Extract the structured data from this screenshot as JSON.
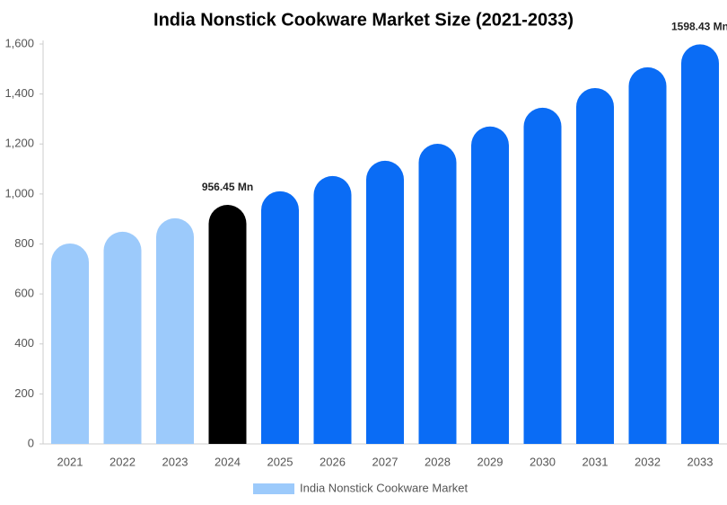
{
  "chart_data": {
    "type": "bar",
    "title": "India Nonstick Cookware Market Size (2021-2033)",
    "categories": [
      "2021",
      "2022",
      "2023",
      "2024",
      "2025",
      "2026",
      "2027",
      "2028",
      "2029",
      "2030",
      "2031",
      "2032",
      "2033"
    ],
    "series": [
      {
        "name": "India Nonstick Cookware Market",
        "color": "#9ccafb",
        "colors": [
          "#9ccafb",
          "#9ccafb",
          "#9ccafb",
          "#000000",
          "#0a6cf5",
          "#0a6cf5",
          "#0a6cf5",
          "#0a6cf5",
          "#0a6cf5",
          "#0a6cf5",
          "#0a6cf5",
          "#0a6cf5",
          "#0a6cf5"
        ],
        "values": [
          802,
          849,
          903,
          956.45,
          1011,
          1072,
          1133,
          1201,
          1270,
          1345,
          1424,
          1507,
          1598.43
        ],
        "value_labels": [
          null,
          null,
          null,
          "956.45 Mn",
          null,
          null,
          null,
          null,
          null,
          null,
          null,
          null,
          "1598.43 Mn"
        ]
      }
    ],
    "ylim": [
      0,
      1600
    ],
    "yticks": [
      0,
      200,
      400,
      600,
      800,
      {
        "value": 1000,
        "label": "1,000"
      },
      {
        "value": 1200,
        "label": "1,200"
      },
      {
        "value": 1400,
        "label": "1,400"
      },
      {
        "value": 1600,
        "label": "1,600"
      }
    ],
    "grid": false,
    "legend": "bottom"
  }
}
